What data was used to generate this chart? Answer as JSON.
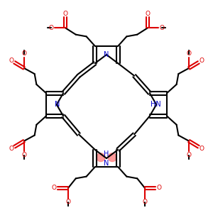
{
  "black": "#000000",
  "red": "#dd0000",
  "blue": "#0000cc",
  "pink": "#ff8888",
  "lw": 1.5,
  "fig_size": [
    3.0,
    3.0
  ],
  "dpi": 100,
  "xlim": [
    -5.5,
    5.5
  ],
  "ylim": [
    -5.5,
    5.5
  ]
}
